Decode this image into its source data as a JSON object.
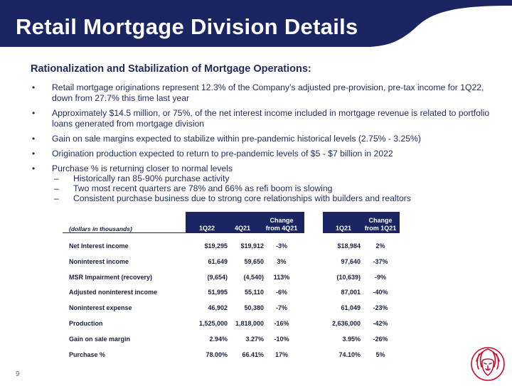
{
  "header": {
    "title": "Retail Mortgage Division Details",
    "bg_color": "#1b2562"
  },
  "section": {
    "subtitle": "Rationalization and Stabilization of Mortgage Operations:",
    "bullets": [
      "Retail mortgage originations represent 12.3% of the Company’s adjusted pre-provision, pre-tax income for 1Q22, down from 27.7% this time last year",
      "Approximately $14.5 million, or 75%, of the net interest income included in mortgage revenue is related to portfolio loans generated from mortgage division",
      "Gain on sale margins expected to stabilize within pre-pandemic historical levels (2.75% - 3.25%)",
      "Origination production expected to return to pre-pandemic levels of $5 - $7 billion in 2022",
      "Purchase % is returning closer to normal levels"
    ],
    "sub_bullets": [
      "Historically ran 85-90% purchase activity",
      "Two most recent quarters are 78% and 66% as refi boom is slowing",
      "Consistent purchase business due to strong core relationships with builders and realtors"
    ]
  },
  "table": {
    "units_label": "(dollars in thousands)",
    "headers": {
      "q1_22": "1Q22",
      "q4_21": "4Q21",
      "change_4q21": [
        "Change",
        "from 4Q21"
      ],
      "q1_21": "1Q21",
      "change_1q21": [
        "Change",
        "from 1Q21"
      ]
    },
    "rows": [
      {
        "label": "Net Interest income",
        "q1_22": "$19,295",
        "q4_21": "$19,912",
        "chg4": "-3%",
        "q1_21": "$18,984",
        "chg1": "2%"
      },
      {
        "label": "Noninterest income",
        "q1_22": "61,649",
        "q4_21": "59,650",
        "chg4": "3%",
        "q1_21": "97,640",
        "chg1": "-37%"
      },
      {
        "label": "MSR Impairment (recovery)",
        "q1_22": "(9,654)",
        "q4_21": "(4,540)",
        "chg4": "113%",
        "q1_21": "(10,639)",
        "chg1": "-9%"
      },
      {
        "label": "Adjusted noninterest income",
        "q1_22": "51,995",
        "q4_21": "55,110",
        "chg4": "-6%",
        "q1_21": "87,001",
        "chg1": "-40%"
      },
      {
        "label": "Noninterest expense",
        "q1_22": "46,902",
        "q4_21": "50,380",
        "chg4": "-7%",
        "q1_21": "61,049",
        "chg1": "-23%"
      },
      {
        "label": "Production",
        "q1_22": "1,525,000",
        "q4_21": "1,818,000",
        "chg4": "-16%",
        "q1_21": "2,636,000",
        "chg1": "-42%"
      },
      {
        "label": "Gain on sale margin",
        "q1_22": "2.94%",
        "q4_21": "3.27%",
        "chg4": "-10%",
        "q1_21": "3.95%",
        "chg1": "-26%"
      },
      {
        "label": "Purchase %",
        "q1_22": "78.00%",
        "q4_21": "66.41%",
        "chg4": "17%",
        "q1_21": "74.10%",
        "chg1": "5%"
      }
    ]
  },
  "footer": {
    "page_number": "9",
    "logo_icon": "lion-head-logo-icon",
    "logo_color": "#c8102e"
  }
}
